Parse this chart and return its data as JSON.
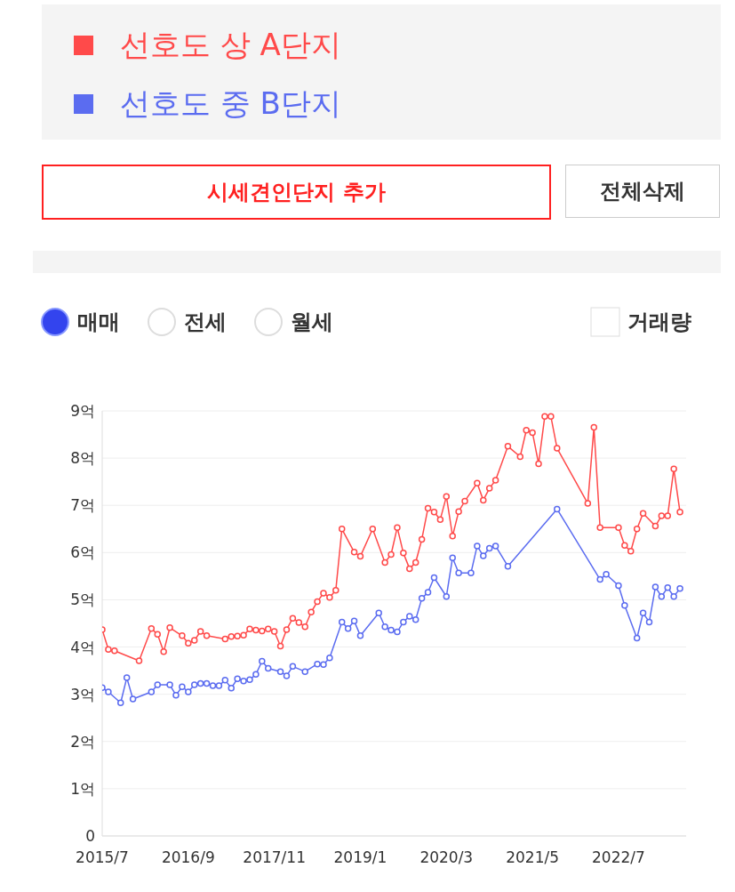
{
  "chart_data": {
    "type": "line",
    "legend": "top",
    "grid": "y",
    "marker": "circle",
    "line_style": "solid",
    "annotations": [
      "시세견인단지 추가",
      "전체삭제",
      "매매",
      "전세",
      "월세",
      "거래량"
    ],
    "xlim": [
      "2015-07",
      "2023-06"
    ],
    "xticks": [
      {
        "value": "2015-07",
        "label": "2015/7"
      },
      {
        "value": "2016-09",
        "label": "2016/9"
      },
      {
        "value": "2017-11",
        "label": "2017/11"
      },
      {
        "value": "2019-01",
        "label": "2019/1"
      },
      {
        "value": "2020-03",
        "label": "2020/3"
      },
      {
        "value": "2021-05",
        "label": "2021/5"
      },
      {
        "value": "2022-07",
        "label": "2022/7"
      }
    ],
    "ylim": [
      0,
      9
    ],
    "yticks": [
      {
        "value": 0,
        "label": "0"
      },
      {
        "value": 1,
        "label": "1억"
      },
      {
        "value": 2,
        "label": "2억"
      },
      {
        "value": 3,
        "label": "3억"
      },
      {
        "value": 4,
        "label": "4억"
      },
      {
        "value": 5,
        "label": "5억"
      },
      {
        "value": 6,
        "label": "6억"
      },
      {
        "value": 7,
        "label": "7억"
      },
      {
        "value": 8,
        "label": "8억"
      },
      {
        "value": 9,
        "label": "9억"
      }
    ],
    "series": [
      {
        "name": "선호도 상 A단지",
        "color": "#ff4a4a",
        "x": [
          "2015-07",
          "2015-08",
          "2015-09",
          "2016-01",
          "2016-03",
          "2016-04",
          "2016-05",
          "2016-06",
          "2016-08",
          "2016-09",
          "2016-10",
          "2016-11",
          "2016-12",
          "2017-03",
          "2017-04",
          "2017-05",
          "2017-06",
          "2017-07",
          "2017-08",
          "2017-09",
          "2017-10",
          "2017-11",
          "2017-12",
          "2018-01",
          "2018-02",
          "2018-03",
          "2018-04",
          "2018-05",
          "2018-06",
          "2018-07",
          "2018-08",
          "2018-09",
          "2018-10",
          "2018-12",
          "2019-01",
          "2019-03",
          "2019-05",
          "2019-06",
          "2019-07",
          "2019-08",
          "2019-09",
          "2019-10",
          "2019-11",
          "2019-12",
          "2020-01",
          "2020-02",
          "2020-03",
          "2020-04",
          "2020-05",
          "2020-06",
          "2020-08",
          "2020-09",
          "2020-10",
          "2020-11",
          "2021-01",
          "2021-03",
          "2021-04",
          "2021-05",
          "2021-06",
          "2021-07",
          "2021-08",
          "2021-09",
          "2022-02",
          "2022-03",
          "2022-04",
          "2022-07",
          "2022-08",
          "2022-09",
          "2022-10",
          "2022-11",
          "2023-01",
          "2023-02",
          "2023-03",
          "2023-04",
          "2023-05"
        ],
        "values": [
          4.37,
          3.95,
          3.92,
          3.71,
          4.39,
          4.27,
          3.9,
          4.41,
          4.24,
          4.08,
          4.14,
          4.33,
          4.24,
          4.17,
          4.22,
          4.23,
          4.25,
          4.38,
          4.36,
          4.34,
          4.38,
          4.33,
          4.02,
          4.37,
          4.61,
          4.52,
          4.43,
          4.74,
          4.96,
          5.14,
          5.05,
          5.2,
          6.5,
          6.01,
          5.92,
          6.5,
          5.79,
          5.96,
          6.53,
          5.99,
          5.66,
          5.79,
          6.28,
          6.94,
          6.86,
          6.7,
          7.19,
          6.35,
          6.87,
          7.09,
          7.47,
          7.11,
          7.36,
          7.53,
          8.25,
          8.03,
          8.59,
          8.54,
          7.88,
          8.88,
          8.88,
          8.21,
          7.04,
          8.65,
          6.53,
          6.53,
          6.15,
          6.03,
          6.5,
          6.83,
          6.56,
          6.78,
          6.78,
          7.77,
          6.86
        ]
      },
      {
        "name": "선호도 중 B단지",
        "color": "#5b6cf0",
        "x": [
          "2015-07",
          "2015-08",
          "2015-10",
          "2015-11",
          "2015-12",
          "2016-03",
          "2016-04",
          "2016-06",
          "2016-07",
          "2016-08",
          "2016-09",
          "2016-10",
          "2016-11",
          "2016-12",
          "2017-01",
          "2017-02",
          "2017-03",
          "2017-04",
          "2017-05",
          "2017-06",
          "2017-07",
          "2017-08",
          "2017-09",
          "2017-10",
          "2017-12",
          "2018-01",
          "2018-02",
          "2018-04",
          "2018-06",
          "2018-07",
          "2018-08",
          "2018-10",
          "2018-11",
          "2018-12",
          "2019-01",
          "2019-04",
          "2019-05",
          "2019-06",
          "2019-07",
          "2019-08",
          "2019-09",
          "2019-10",
          "2019-11",
          "2019-12",
          "2020-01",
          "2020-03",
          "2020-04",
          "2020-05",
          "2020-07",
          "2020-08",
          "2020-09",
          "2020-10",
          "2020-11",
          "2021-01",
          "2021-09",
          "2022-04",
          "2022-05",
          "2022-07",
          "2022-08",
          "2022-10",
          "2022-11",
          "2022-12",
          "2023-01",
          "2023-02",
          "2023-03",
          "2023-04",
          "2023-05"
        ],
        "values": [
          3.14,
          3.05,
          2.82,
          3.35,
          2.9,
          3.05,
          3.2,
          3.2,
          2.98,
          3.16,
          3.05,
          3.2,
          3.23,
          3.23,
          3.18,
          3.18,
          3.3,
          3.13,
          3.33,
          3.28,
          3.31,
          3.42,
          3.7,
          3.55,
          3.48,
          3.39,
          3.59,
          3.48,
          3.64,
          3.63,
          3.77,
          4.53,
          4.39,
          4.55,
          4.24,
          4.72,
          4.43,
          4.36,
          4.32,
          4.53,
          4.65,
          4.58,
          5.03,
          5.16,
          5.47,
          5.07,
          5.89,
          5.57,
          5.57,
          6.14,
          5.93,
          6.09,
          6.14,
          5.71,
          6.92,
          5.43,
          5.54,
          5.3,
          4.88,
          4.19,
          4.72,
          4.53,
          5.27,
          5.07,
          5.26,
          5.07,
          5.24
        ]
      }
    ]
  }
}
